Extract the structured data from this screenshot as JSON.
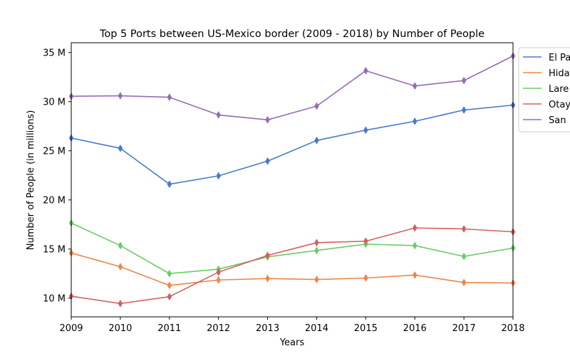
{
  "chart_data": {
    "type": "line",
    "title": "Top 5 Ports between US-Mexico border (2009 - 2018) by Number of People",
    "xlabel": "Years",
    "ylabel": "Number of People (in millions)",
    "x": [
      2009,
      2010,
      2011,
      2012,
      2013,
      2014,
      2015,
      2016,
      2017,
      2018
    ],
    "xlim": [
      2009,
      2018
    ],
    "ylim": [
      8.1,
      36
    ],
    "y_ticks": [
      10,
      15,
      20,
      25,
      30,
      35
    ],
    "y_tick_labels": [
      "10 M",
      "15 M",
      "20 M",
      "25 M",
      "30 M",
      "35 M"
    ],
    "x_tick_labels": [
      "2009",
      "2010",
      "2011",
      "2012",
      "2013",
      "2014",
      "2015",
      "2016",
      "2017",
      "2018"
    ],
    "grid": false,
    "legend_position": "outside-top-right",
    "marker": "thin-diamond",
    "series": [
      {
        "name": "El Paso",
        "legend_label": "El Pa",
        "color": "#4878cf",
        "values": [
          26.3,
          25.25,
          21.6,
          22.45,
          23.95,
          26.05,
          27.1,
          28.0,
          29.15,
          29.65
        ]
      },
      {
        "name": "Hidalgo",
        "legend_label": "Hida",
        "color": "#ee854a",
        "values": [
          14.6,
          13.2,
          11.3,
          11.85,
          12.0,
          11.9,
          12.05,
          12.35,
          11.6,
          11.55
        ]
      },
      {
        "name": "Laredo",
        "legend_label": "Lare",
        "color": "#6acc64",
        "values": [
          17.65,
          15.35,
          12.5,
          12.95,
          14.2,
          14.85,
          15.5,
          15.35,
          14.25,
          15.1
        ]
      },
      {
        "name": "Otay Mesa",
        "legend_label": "Otay",
        "color": "#d65f5f",
        "values": [
          10.2,
          9.45,
          10.15,
          12.65,
          14.35,
          15.65,
          15.8,
          17.15,
          17.05,
          16.75
        ]
      },
      {
        "name": "San Ysidro",
        "legend_label": "San",
        "color": "#956cb4",
        "values": [
          30.55,
          30.6,
          30.45,
          28.65,
          28.15,
          29.55,
          33.15,
          31.6,
          32.15,
          34.65
        ]
      }
    ]
  }
}
